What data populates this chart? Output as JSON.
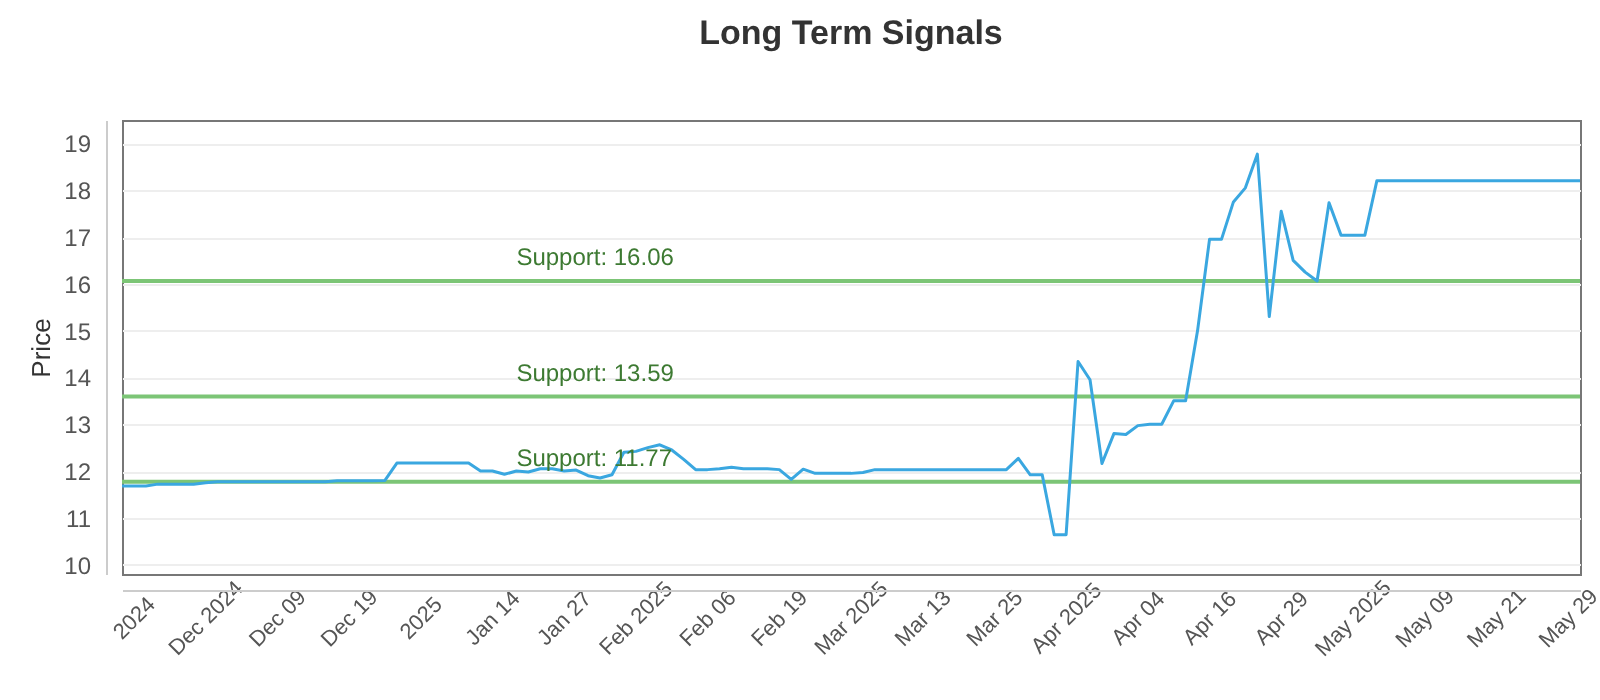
{
  "chart_data": {
    "type": "line",
    "title": "Long Term Signals",
    "ylabel": "Price",
    "categories": [
      null,
      "2024",
      null,
      null,
      null,
      null,
      null,
      "Dec 2024",
      null,
      null,
      null,
      null,
      null,
      "Dec 09",
      null,
      null,
      null,
      null,
      null,
      "Dec 19",
      null,
      null,
      null,
      null,
      null,
      "2025",
      null,
      null,
      null,
      null,
      null,
      "Jan 14",
      null,
      null,
      null,
      null,
      null,
      "Jan 27",
      null,
      null,
      null,
      null,
      null,
      "Feb 2025",
      null,
      null,
      null,
      null,
      null,
      "Feb 06",
      null,
      null,
      null,
      null,
      null,
      "Feb 19",
      null,
      null,
      null,
      null,
      null,
      "Mar 2025",
      null,
      null,
      null,
      null,
      null,
      "Mar 13",
      null,
      null,
      null,
      null,
      null,
      "Mar 25",
      null,
      null,
      null,
      null,
      null,
      "Apr 2025",
      null,
      null,
      null,
      null,
      null,
      "Apr 04",
      null,
      null,
      null,
      null,
      null,
      "Apr 16",
      null,
      null,
      null,
      null,
      null,
      "Apr 29",
      null,
      null,
      null,
      null,
      null,
      "May 2025",
      null,
      null,
      null,
      null,
      null,
      "May 09",
      null,
      null,
      null,
      null,
      null,
      "May 21",
      null,
      null,
      null,
      null,
      null,
      "May 29",
      null
    ],
    "series": [
      {
        "color": "#3aa7e0",
        "values": [
          11.68,
          11.68,
          11.68,
          11.72,
          11.72,
          11.72,
          11.72,
          11.75,
          11.77,
          11.77,
          11.77,
          11.77,
          11.77,
          11.77,
          11.77,
          11.77,
          11.77,
          11.77,
          11.79,
          11.79,
          11.79,
          11.79,
          11.8,
          12.17,
          12.17,
          12.17,
          12.17,
          12.17,
          12.17,
          12.17,
          12.0,
          12.0,
          11.93,
          12.0,
          11.98,
          12.05,
          12.05,
          12.0,
          12.02,
          11.9,
          11.85,
          11.92,
          12.4,
          12.42,
          12.5,
          12.56,
          12.45,
          12.25,
          12.03,
          12.03,
          12.05,
          12.08,
          12.05,
          12.05,
          12.05,
          12.03,
          11.82,
          12.04,
          11.95,
          11.95,
          11.95,
          11.95,
          11.97,
          12.03,
          12.03,
          12.03,
          12.03,
          12.03,
          12.03,
          12.03,
          12.03,
          12.03,
          12.03,
          12.03,
          12.03,
          12.27,
          11.92,
          11.92,
          10.64,
          10.64,
          14.34,
          13.95,
          12.16,
          12.8,
          12.78,
          12.97,
          13.0,
          13.0,
          13.5,
          13.5,
          15.0,
          16.95,
          16.95,
          17.75,
          18.05,
          18.77,
          15.3,
          17.55,
          16.5,
          16.25,
          16.06,
          17.73,
          17.04,
          17.04,
          17.04,
          18.2,
          18.2,
          18.2,
          18.2,
          18.2,
          18.2,
          18.2,
          18.2,
          18.2,
          18.2,
          18.2,
          18.2,
          18.2,
          18.2,
          18.2,
          18.2,
          18.2,
          18.2
        ]
      }
    ],
    "ylim": [
      9.8,
      19.5
    ],
    "yticks": [
      10,
      11,
      12,
      13,
      14,
      15,
      16,
      17,
      18,
      19
    ],
    "grid": "y",
    "ref_lines": [
      {
        "axis": "y",
        "value": 16.06,
        "label": "Support: 16.06",
        "color": "#7cc576"
      },
      {
        "axis": "y",
        "value": 13.59,
        "label": "Support: 13.59",
        "color": "#7cc576"
      },
      {
        "axis": "y",
        "value": 11.77,
        "label": "Support: 11.77",
        "color": "#7cc576"
      }
    ]
  }
}
